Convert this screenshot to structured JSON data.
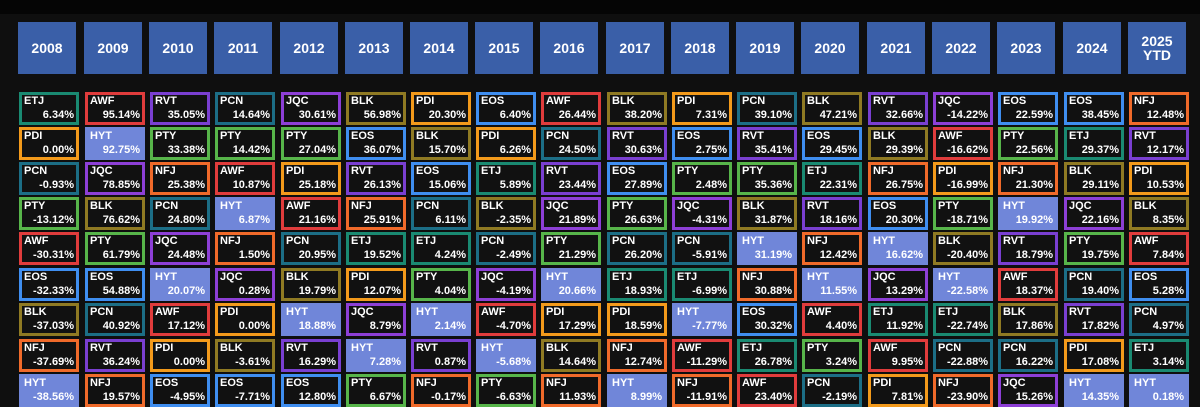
{
  "chart_data": {
    "type": "table",
    "title": "",
    "years": [
      "2008",
      "2009",
      "2010",
      "2011",
      "2012",
      "2013",
      "2014",
      "2015",
      "2016",
      "2017",
      "2018",
      "2019",
      "2020",
      "2021",
      "2022",
      "2023",
      "2024",
      "2025\nYTD"
    ],
    "ticker_colors": {
      "ETJ": "#1a8a72",
      "AWF": "#e03c3c",
      "RVT": "#7a3fd1",
      "PCN": "#1c6e86",
      "JQC": "#8d3fd6",
      "BLK": "#8f7a23",
      "PDI": "#f39a1b",
      "EOS": "#3f8ef0",
      "NFJ": "#f06a2a",
      "PTY": "#57b54a",
      "HYT": "#7086d9"
    },
    "columns": [
      [
        [
          "ETJ",
          "6.34%"
        ],
        [
          "PDI",
          "0.00%"
        ],
        [
          "PCN",
          "-0.93%"
        ],
        [
          "PTY",
          "-13.12%"
        ],
        [
          "AWF",
          "-30.31%"
        ],
        [
          "EOS",
          "-32.33%"
        ],
        [
          "BLK",
          "-37.03%"
        ],
        [
          "NFJ",
          "-37.69%"
        ],
        [
          "HYT",
          "-38.56%"
        ]
      ],
      [
        [
          "AWF",
          "95.14%"
        ],
        [
          "HYT",
          "92.75%"
        ],
        [
          "JQC",
          "78.85%"
        ],
        [
          "BLK",
          "76.62%"
        ],
        [
          "PTY",
          "61.79%"
        ],
        [
          "EOS",
          "54.88%"
        ],
        [
          "PCN",
          "40.92%"
        ],
        [
          "RVT",
          "36.24%"
        ],
        [
          "NFJ",
          "19.57%"
        ]
      ],
      [
        [
          "RVT",
          "35.05%"
        ],
        [
          "PTY",
          "33.38%"
        ],
        [
          "NFJ",
          "25.38%"
        ],
        [
          "PCN",
          "24.80%"
        ],
        [
          "JQC",
          "24.48%"
        ],
        [
          "HYT",
          "20.07%"
        ],
        [
          "AWF",
          "17.12%"
        ],
        [
          "PDI",
          "0.00%"
        ],
        [
          "EOS",
          "-4.95%"
        ]
      ],
      [
        [
          "PCN",
          "14.64%"
        ],
        [
          "PTY",
          "14.42%"
        ],
        [
          "AWF",
          "10.87%"
        ],
        [
          "HYT",
          "6.87%"
        ],
        [
          "NFJ",
          "1.50%"
        ],
        [
          "JQC",
          "0.28%"
        ],
        [
          "PDI",
          "0.00%"
        ],
        [
          "BLK",
          "-3.61%"
        ],
        [
          "EOS",
          "-7.71%"
        ]
      ],
      [
        [
          "JQC",
          "30.61%"
        ],
        [
          "PTY",
          "27.04%"
        ],
        [
          "PDI",
          "25.18%"
        ],
        [
          "AWF",
          "21.16%"
        ],
        [
          "PCN",
          "20.95%"
        ],
        [
          "BLK",
          "19.79%"
        ],
        [
          "HYT",
          "18.88%"
        ],
        [
          "RVT",
          "16.29%"
        ],
        [
          "EOS",
          "12.80%"
        ]
      ],
      [
        [
          "BLK",
          "56.98%"
        ],
        [
          "EOS",
          "36.07%"
        ],
        [
          "RVT",
          "26.13%"
        ],
        [
          "NFJ",
          "25.91%"
        ],
        [
          "ETJ",
          "19.52%"
        ],
        [
          "PDI",
          "12.07%"
        ],
        [
          "JQC",
          "8.79%"
        ],
        [
          "HYT",
          "7.28%"
        ],
        [
          "PTY",
          "6.67%"
        ]
      ],
      [
        [
          "PDI",
          "20.30%"
        ],
        [
          "BLK",
          "15.70%"
        ],
        [
          "EOS",
          "15.06%"
        ],
        [
          "PCN",
          "6.11%"
        ],
        [
          "ETJ",
          "4.24%"
        ],
        [
          "PTY",
          "4.04%"
        ],
        [
          "HYT",
          "2.14%"
        ],
        [
          "RVT",
          "0.87%"
        ],
        [
          "NFJ",
          "-0.17%"
        ]
      ],
      [
        [
          "EOS",
          "6.40%"
        ],
        [
          "PDI",
          "6.26%"
        ],
        [
          "ETJ",
          "5.89%"
        ],
        [
          "BLK",
          "-2.35%"
        ],
        [
          "PCN",
          "-2.49%"
        ],
        [
          "JQC",
          "-4.19%"
        ],
        [
          "AWF",
          "-4.70%"
        ],
        [
          "HYT",
          "-5.68%"
        ],
        [
          "PTY",
          "-6.63%"
        ]
      ],
      [
        [
          "AWF",
          "26.44%"
        ],
        [
          "PCN",
          "24.50%"
        ],
        [
          "RVT",
          "23.44%"
        ],
        [
          "JQC",
          "21.89%"
        ],
        [
          "PTY",
          "21.29%"
        ],
        [
          "HYT",
          "20.66%"
        ],
        [
          "PDI",
          "17.29%"
        ],
        [
          "BLK",
          "14.64%"
        ],
        [
          "NFJ",
          "11.93%"
        ]
      ],
      [
        [
          "BLK",
          "38.20%"
        ],
        [
          "RVT",
          "30.63%"
        ],
        [
          "EOS",
          "27.89%"
        ],
        [
          "PTY",
          "26.63%"
        ],
        [
          "PCN",
          "26.20%"
        ],
        [
          "ETJ",
          "18.93%"
        ],
        [
          "PDI",
          "18.59%"
        ],
        [
          "NFJ",
          "12.74%"
        ],
        [
          "HYT",
          "8.99%"
        ]
      ],
      [
        [
          "PDI",
          "7.31%"
        ],
        [
          "EOS",
          "2.75%"
        ],
        [
          "PTY",
          "2.48%"
        ],
        [
          "JQC",
          "-4.31%"
        ],
        [
          "PCN",
          "-5.91%"
        ],
        [
          "ETJ",
          "-6.99%"
        ],
        [
          "HYT",
          "-7.77%"
        ],
        [
          "AWF",
          "-11.29%"
        ],
        [
          "NFJ",
          "-11.91%"
        ]
      ],
      [
        [
          "PCN",
          "39.10%"
        ],
        [
          "RVT",
          "35.41%"
        ],
        [
          "PTY",
          "35.36%"
        ],
        [
          "BLK",
          "31.87%"
        ],
        [
          "HYT",
          "31.19%"
        ],
        [
          "NFJ",
          "30.88%"
        ],
        [
          "EOS",
          "30.32%"
        ],
        [
          "ETJ",
          "26.78%"
        ],
        [
          "AWF",
          "23.40%"
        ]
      ],
      [
        [
          "BLK",
          "47.21%"
        ],
        [
          "EOS",
          "29.45%"
        ],
        [
          "ETJ",
          "22.31%"
        ],
        [
          "RVT",
          "18.16%"
        ],
        [
          "NFJ",
          "12.42%"
        ],
        [
          "HYT",
          "11.55%"
        ],
        [
          "AWF",
          "4.40%"
        ],
        [
          "PTY",
          "3.24%"
        ],
        [
          "PCN",
          "-2.19%"
        ]
      ],
      [
        [
          "RVT",
          "32.66%"
        ],
        [
          "BLK",
          "29.39%"
        ],
        [
          "NFJ",
          "26.75%"
        ],
        [
          "EOS",
          "20.30%"
        ],
        [
          "HYT",
          "16.62%"
        ],
        [
          "JQC",
          "13.29%"
        ],
        [
          "ETJ",
          "11.92%"
        ],
        [
          "AWF",
          "9.95%"
        ],
        [
          "PDI",
          "7.81%"
        ]
      ],
      [
        [
          "JQC",
          "-14.22%"
        ],
        [
          "AWF",
          "-16.62%"
        ],
        [
          "PDI",
          "-16.99%"
        ],
        [
          "PTY",
          "-18.71%"
        ],
        [
          "BLK",
          "-20.40%"
        ],
        [
          "HYT",
          "-22.58%"
        ],
        [
          "ETJ",
          "-22.74%"
        ],
        [
          "PCN",
          "-22.88%"
        ],
        [
          "NFJ",
          "-23.90%"
        ]
      ],
      [
        [
          "EOS",
          "22.59%"
        ],
        [
          "PTY",
          "22.56%"
        ],
        [
          "NFJ",
          "21.30%"
        ],
        [
          "HYT",
          "19.92%"
        ],
        [
          "RVT",
          "18.79%"
        ],
        [
          "AWF",
          "18.37%"
        ],
        [
          "BLK",
          "17.86%"
        ],
        [
          "PCN",
          "16.22%"
        ],
        [
          "JQC",
          "15.26%"
        ]
      ],
      [
        [
          "EOS",
          "38.45%"
        ],
        [
          "ETJ",
          "29.37%"
        ],
        [
          "BLK",
          "29.11%"
        ],
        [
          "JQC",
          "22.16%"
        ],
        [
          "PTY",
          "19.75%"
        ],
        [
          "PCN",
          "19.40%"
        ],
        [
          "RVT",
          "17.82%"
        ],
        [
          "PDI",
          "17.08%"
        ],
        [
          "HYT",
          "14.35%"
        ]
      ],
      [
        [
          "NFJ",
          "12.48%"
        ],
        [
          "RVT",
          "12.17%"
        ],
        [
          "PDI",
          "10.53%"
        ],
        [
          "BLK",
          "8.35%"
        ],
        [
          "AWF",
          "7.84%"
        ],
        [
          "EOS",
          "5.28%"
        ],
        [
          "PCN",
          "4.97%"
        ],
        [
          "ETJ",
          "3.14%"
        ],
        [
          "HYT",
          "0.18%"
        ]
      ]
    ]
  }
}
